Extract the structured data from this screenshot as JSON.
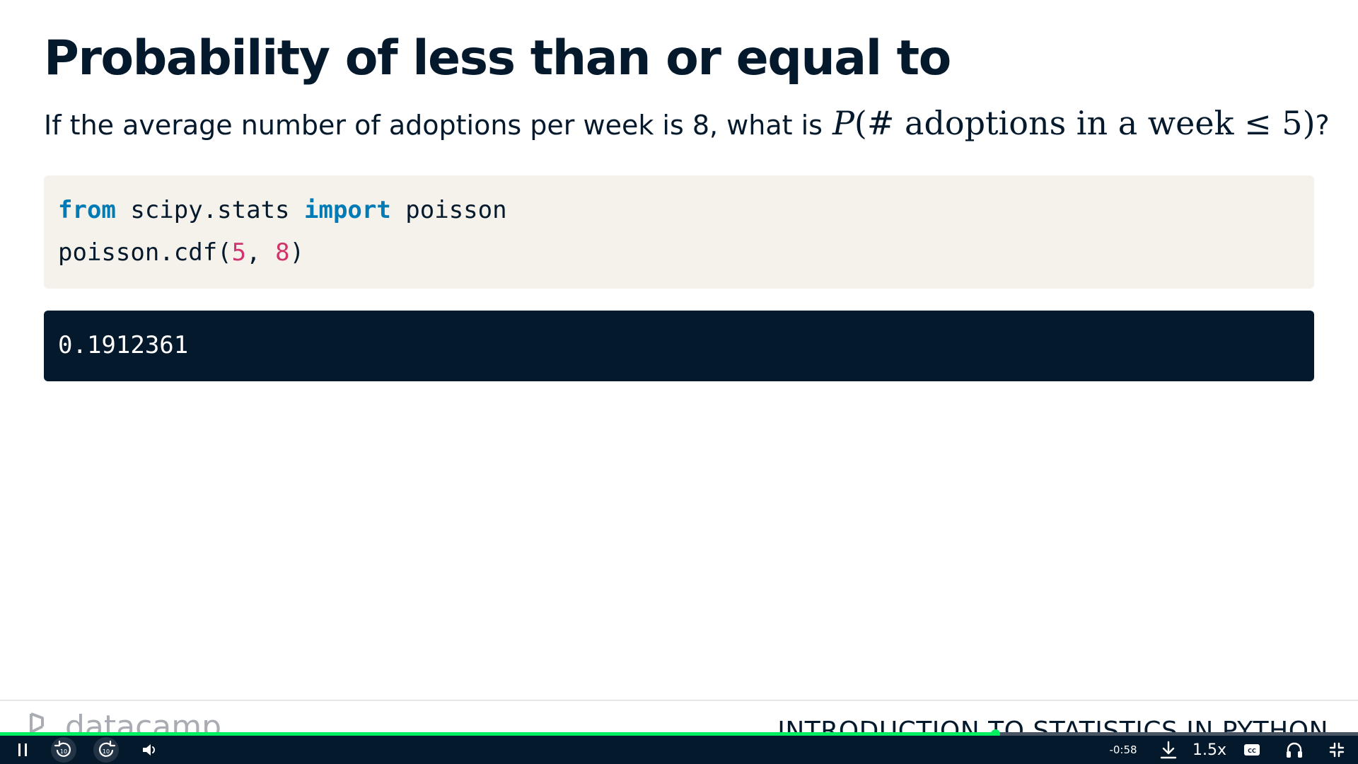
{
  "slide": {
    "title": "Probability of less than or equal to",
    "question_prefix": "If the average number of adoptions per week is 8, what is",
    "question_math": {
      "var": "P",
      "open": "(",
      "body": "# adoptions in a week ≤ 5",
      "close": ")"
    },
    "question_suffix": "?"
  },
  "code": {
    "line1": {
      "kw1": "from",
      "mid": " scipy.stats ",
      "kw2": "import",
      "end": " poisson"
    },
    "line2": {
      "call": "poisson.cdf(",
      "arg1": "5",
      "sep": ", ",
      "arg2": "8",
      "close": ")"
    },
    "colors": {
      "keyword": "#007bb5",
      "number": "#d0346c",
      "background": "#f5f2ec"
    }
  },
  "output": {
    "value": "0.1912361",
    "background": "#05192d"
  },
  "footer": {
    "logo_text": "datacamp",
    "course_title": "INTRODUCTION TO STATISTICS IN PYTHON"
  },
  "player": {
    "progress": 0.733,
    "time_remaining": "-0:58",
    "speed": "1.5x",
    "colors": {
      "progress": "#03ef62",
      "bar": "#05192d"
    },
    "icons": [
      "pause-icon",
      "rewind-10-icon",
      "forward-10-icon",
      "volume-icon",
      "download-icon",
      "closed-captions-icon",
      "headphones-icon",
      "exit-fullscreen-icon"
    ]
  }
}
